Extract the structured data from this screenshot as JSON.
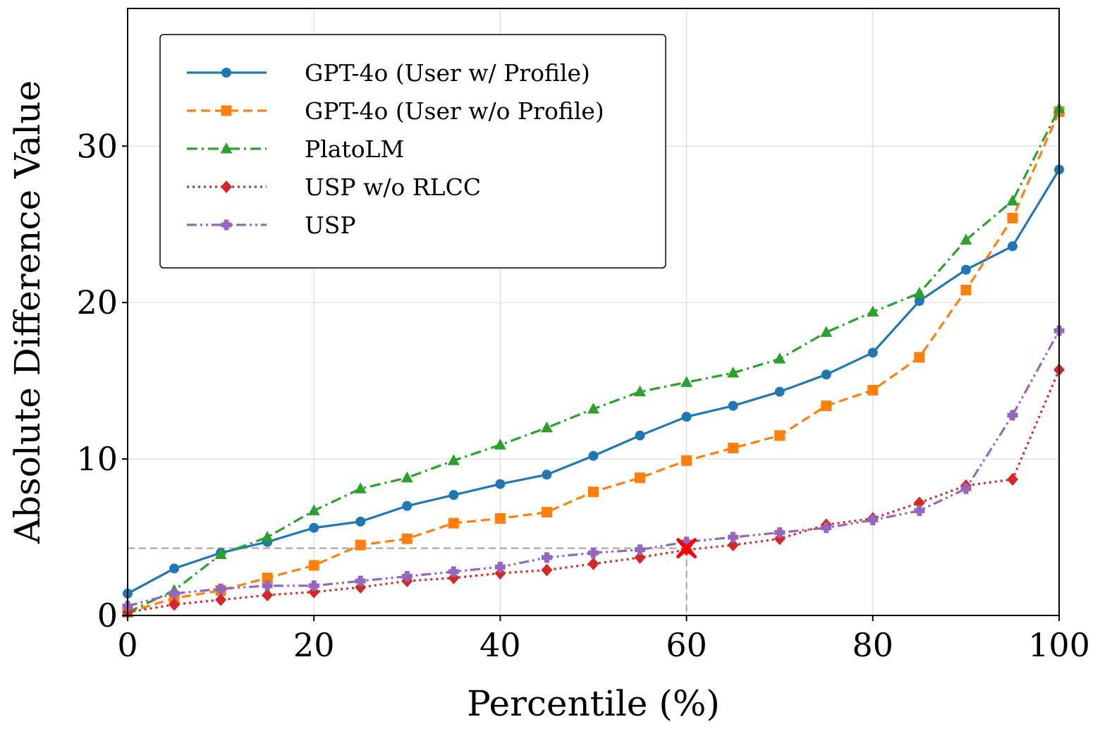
{
  "chart_data": {
    "type": "line",
    "title": "",
    "xlabel": "Percentile (%)",
    "ylabel": "Absolute Difference Value",
    "xlim": [
      0,
      100
    ],
    "ylim": [
      0,
      38.8
    ],
    "xticks": [
      0,
      20,
      40,
      60,
      80,
      100
    ],
    "yticks": [
      0,
      10,
      20,
      30
    ],
    "grid": true,
    "legend_position": "upper-left",
    "x": [
      0,
      5,
      10,
      15,
      20,
      25,
      30,
      35,
      40,
      45,
      50,
      55,
      60,
      65,
      70,
      75,
      80,
      85,
      90,
      95,
      100
    ],
    "series": [
      {
        "name": "GPT-4o (User w/ Profile)",
        "color": "#1f77b4",
        "linestyle": "solid",
        "marker": "circle",
        "values": [
          1.4,
          3.0,
          4.0,
          4.7,
          5.6,
          6.0,
          7.0,
          7.7,
          8.4,
          9.0,
          10.2,
          11.5,
          12.7,
          13.4,
          14.3,
          15.4,
          16.8,
          20.1,
          22.1,
          23.6,
          28.5
        ]
      },
      {
        "name": "GPT-4o (User w/o Profile)",
        "color": "#ff7f0e",
        "linestyle": "dashed",
        "marker": "square",
        "values": [
          0.2,
          1.1,
          1.6,
          2.4,
          3.2,
          4.5,
          4.9,
          5.9,
          6.2,
          6.6,
          7.9,
          8.8,
          9.9,
          10.7,
          11.5,
          13.4,
          14.4,
          16.5,
          20.8,
          25.4,
          32.2
        ]
      },
      {
        "name": "PlatoLM",
        "color": "#2ca02c",
        "linestyle": "dashdot",
        "marker": "triangle",
        "values": [
          0.2,
          1.6,
          3.9,
          5.0,
          6.7,
          8.1,
          8.8,
          9.9,
          10.9,
          12.0,
          13.2,
          14.3,
          14.9,
          15.5,
          16.4,
          18.1,
          19.4,
          20.6,
          24.0,
          26.5,
          32.4
        ]
      },
      {
        "name": "USP w/o RLCC",
        "color": "#d62728",
        "linestyle": "dotted",
        "marker": "diamond",
        "values": [
          0.2,
          0.7,
          1.0,
          1.3,
          1.5,
          1.8,
          2.2,
          2.4,
          2.7,
          2.9,
          3.3,
          3.7,
          4.2,
          4.5,
          4.9,
          5.8,
          6.2,
          7.2,
          8.3,
          8.7,
          15.7
        ]
      },
      {
        "name": "USP",
        "color": "#9467bd",
        "linestyle": "dashdotdot",
        "marker": "plus",
        "values": [
          0.6,
          1.4,
          1.7,
          1.9,
          1.9,
          2.2,
          2.5,
          2.8,
          3.1,
          3.7,
          4.0,
          4.2,
          4.7,
          5.0,
          5.3,
          5.6,
          6.1,
          6.7,
          8.1,
          12.8,
          18.2
        ]
      }
    ],
    "highlight": {
      "x": 60,
      "y": 4.3,
      "marker": "x",
      "color": "#ff0000",
      "reference_line_color": "#a0a0a0"
    }
  }
}
